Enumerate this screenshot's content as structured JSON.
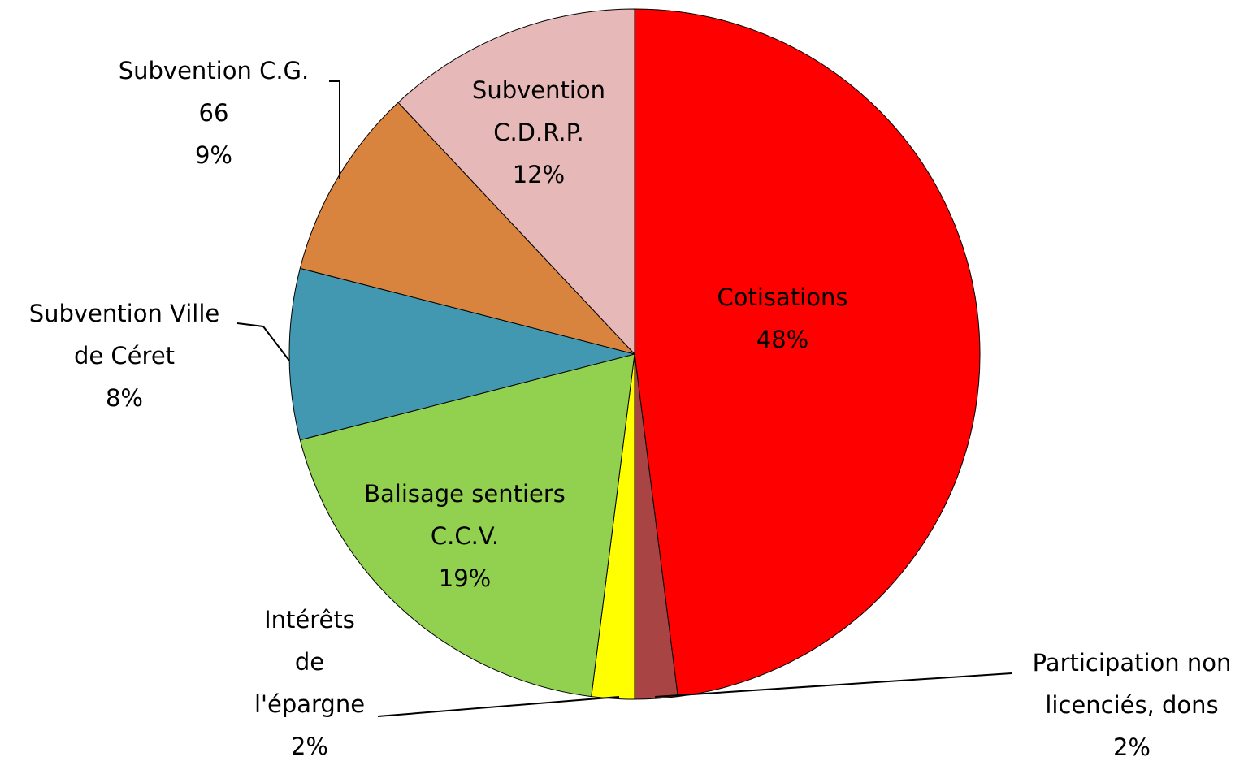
{
  "chart_data": {
    "type": "pie",
    "categories": [
      "Cotisations",
      "Participation non licenciés, dons",
      "Intérêts de l'épargne",
      "Balisage sentiers C.C.V.",
      "Subvention Ville de Céret",
      "Subvention C.G. 66",
      "Subvention C.D.R.P."
    ],
    "values": [
      48,
      2,
      2,
      19,
      8,
      9,
      12
    ],
    "value_labels": [
      "48%",
      "2%",
      "2%",
      "19%",
      "8%",
      "9%",
      "12%"
    ],
    "colors": [
      "#ff0000",
      "#a94444",
      "#ffff00",
      "#92d050",
      "#4198b0",
      "#d9843e",
      "#e6b8b7"
    ]
  }
}
